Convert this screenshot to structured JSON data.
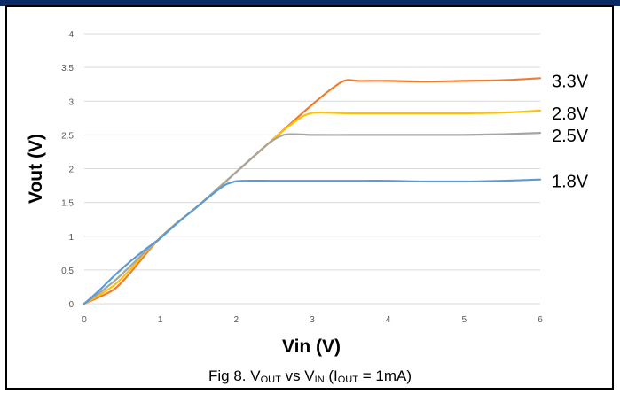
{
  "chart_data": {
    "type": "line",
    "xlabel": "Vin (V)",
    "ylabel": "Vout (V)",
    "xlim": [
      0,
      6
    ],
    "ylim": [
      0,
      4
    ],
    "xticks": [
      "0",
      "1",
      "2",
      "3",
      "4",
      "5",
      "6"
    ],
    "yticks": [
      "0",
      "0.5",
      "1",
      "1.5",
      "2",
      "2.5",
      "3",
      "3.5",
      "4"
    ],
    "grid": "horizontal",
    "series": [
      {
        "name": "3.3V",
        "color": "#ed7d31",
        "x": [
          0,
          0.2,
          0.4,
          0.6,
          0.8,
          1.0,
          1.2,
          1.5,
          2.0,
          2.5,
          3.0,
          3.3,
          3.45,
          3.6,
          4.0,
          4.5,
          5.0,
          5.5,
          6.0
        ],
        "y": [
          0,
          0.1,
          0.22,
          0.45,
          0.72,
          0.98,
          1.18,
          1.45,
          1.95,
          2.45,
          2.95,
          3.22,
          3.31,
          3.3,
          3.3,
          3.29,
          3.3,
          3.31,
          3.34
        ]
      },
      {
        "name": "2.8V",
        "color": "#ffc000",
        "x": [
          0,
          0.2,
          0.4,
          0.6,
          0.8,
          1.0,
          1.2,
          1.5,
          2.0,
          2.5,
          2.8,
          2.95,
          3.1,
          3.5,
          4.0,
          4.5,
          5.0,
          5.5,
          6.0
        ],
        "y": [
          0,
          0.13,
          0.28,
          0.5,
          0.75,
          0.97,
          1.18,
          1.45,
          1.95,
          2.45,
          2.72,
          2.81,
          2.83,
          2.82,
          2.82,
          2.82,
          2.82,
          2.83,
          2.86
        ]
      },
      {
        "name": "2.5V",
        "color": "#a5a5a5",
        "x": [
          0,
          0.2,
          0.4,
          0.6,
          0.8,
          1.0,
          1.2,
          1.5,
          2.0,
          2.4,
          2.6,
          2.75,
          3.0,
          3.5,
          4.0,
          4.5,
          5.0,
          5.5,
          6.0
        ],
        "y": [
          0,
          0.16,
          0.34,
          0.55,
          0.77,
          0.97,
          1.18,
          1.45,
          1.95,
          2.35,
          2.49,
          2.51,
          2.5,
          2.5,
          2.5,
          2.5,
          2.5,
          2.51,
          2.53
        ]
      },
      {
        "name": "1.8V",
        "color": "#5b9bd5",
        "x": [
          0,
          0.2,
          0.4,
          0.6,
          0.8,
          1.0,
          1.2,
          1.5,
          1.8,
          1.95,
          2.1,
          2.5,
          3.0,
          3.5,
          4.0,
          4.5,
          5.0,
          5.5,
          6.0
        ],
        "y": [
          0,
          0.2,
          0.42,
          0.62,
          0.8,
          0.97,
          1.17,
          1.45,
          1.72,
          1.8,
          1.82,
          1.82,
          1.82,
          1.82,
          1.82,
          1.81,
          1.81,
          1.82,
          1.84
        ]
      }
    ]
  }
}
